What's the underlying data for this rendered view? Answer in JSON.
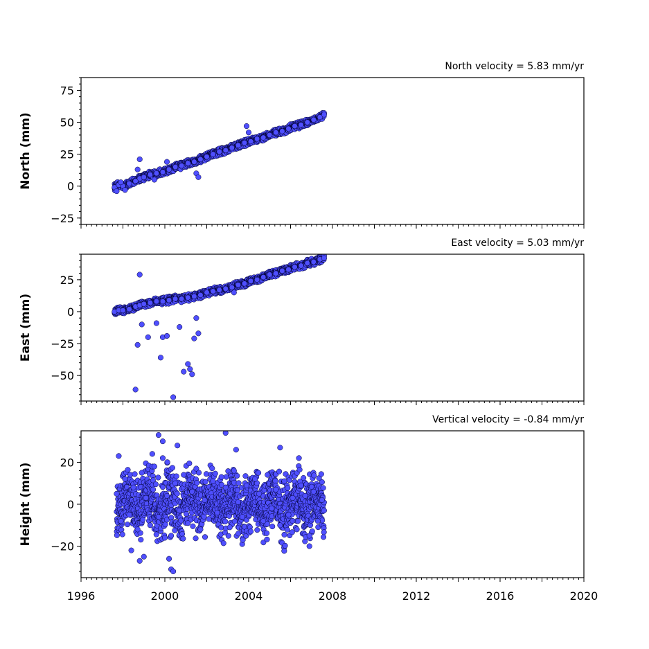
{
  "chart_data": [
    {
      "type": "scatter",
      "title": "North velocity = 5.83 mm/yr",
      "xlabel": "",
      "ylabel": "North (mm)",
      "xlim": [
        1996,
        2020
      ],
      "ylim": [
        -30,
        85
      ],
      "xticks": [
        "1996",
        "2000",
        "2004",
        "2008",
        "2012",
        "2016",
        "2020"
      ],
      "yticks": [
        -25,
        0,
        25,
        50,
        75
      ],
      "grid": false,
      "marker_color": "#4f4fff",
      "marker_edge": "#000033",
      "series": [
        {
          "x": [
            1997.6,
            1997.8,
            1998.0,
            1998.3,
            1998.6,
            1998.8,
            1999.0,
            1999.3,
            1999.6,
            1999.9,
            2000.2,
            2000.5,
            2000.8,
            2001.1,
            2001.4,
            2001.7,
            2002.0,
            2002.3,
            2002.6,
            2002.9,
            2003.2,
            2003.5,
            2003.8,
            2004.1,
            2004.4,
            2004.7,
            2005.0,
            2005.3,
            2005.6,
            2005.9,
            2006.2,
            2006.5,
            2006.8,
            2007.1,
            2007.4,
            2007.6
          ],
          "y": [
            -1,
            1,
            0,
            2,
            4,
            6,
            7,
            9,
            10,
            11,
            13,
            15,
            16,
            18,
            19,
            21,
            23,
            25,
            27,
            28,
            30,
            32,
            34,
            35,
            37,
            38,
            40,
            42,
            43,
            45,
            47,
            48,
            50,
            52,
            54,
            56
          ]
        },
        {
          "x": [
            1997.7,
            1997.9,
            1998.1,
            1998.7,
            1998.8,
            1999.5,
            2000.1,
            2001.5,
            2001.6,
            2003.9,
            2004.0
          ],
          "y": [
            -4,
            3,
            -3,
            13,
            21,
            5,
            19,
            10,
            7,
            47,
            42
          ]
        }
      ]
    },
    {
      "type": "scatter",
      "title": "East velocity = 5.03 mm/yr",
      "xlabel": "",
      "ylabel": "East (mm)",
      "xlim": [
        1996,
        2020
      ],
      "ylim": [
        -70,
        45
      ],
      "xticks": [
        "1996",
        "2000",
        "2004",
        "2008",
        "2012",
        "2016",
        "2020"
      ],
      "yticks": [
        -50,
        -25,
        0,
        25
      ],
      "grid": false,
      "marker_color": "#4f4fff",
      "marker_edge": "#000033",
      "series": [
        {
          "x": [
            1997.6,
            1997.8,
            1998.0,
            1998.3,
            1998.6,
            1998.8,
            1999.0,
            1999.3,
            1999.6,
            1999.9,
            2000.2,
            2000.5,
            2000.8,
            2001.1,
            2001.4,
            2001.7,
            2002.0,
            2002.3,
            2002.6,
            2002.9,
            2003.2,
            2003.5,
            2003.8,
            2004.1,
            2004.4,
            2004.7,
            2005.0,
            2005.3,
            2005.6,
            2005.9,
            2006.2,
            2006.5,
            2006.8,
            2007.1,
            2007.4,
            2007.6
          ],
          "y": [
            0,
            1,
            1,
            2,
            4,
            5,
            6,
            7,
            8,
            8,
            9,
            10,
            10,
            11,
            12,
            13,
            15,
            16,
            17,
            18,
            19,
            21,
            22,
            24,
            25,
            27,
            29,
            30,
            32,
            33,
            35,
            36,
            38,
            39,
            41,
            42
          ]
        },
        {
          "x": [
            1998.6,
            1998.7,
            1998.8,
            1998.9,
            1999.2,
            1999.6,
            1999.8,
            1999.9,
            2000.1,
            2000.4,
            2000.7,
            2000.9,
            2001.1,
            2001.2,
            2001.3,
            2001.4,
            2001.5,
            2001.6,
            2003.3
          ],
          "y": [
            -61,
            -26,
            29,
            -10,
            -20,
            -9,
            -36,
            -20,
            -19,
            -67,
            -12,
            -47,
            -41,
            -45,
            -49,
            -21,
            -5,
            -17,
            15
          ]
        }
      ]
    },
    {
      "type": "scatter",
      "title": "Vertical velocity = -0.84 mm/yr",
      "xlabel": "",
      "ylabel": "Height (mm)",
      "xlim": [
        1996,
        2020
      ],
      "ylim": [
        -35,
        35
      ],
      "xticks": [
        "1996",
        "2000",
        "2004",
        "2008",
        "2012",
        "2016",
        "2020"
      ],
      "yticks": [
        -20,
        0,
        20
      ],
      "grid": false,
      "marker_color": "#4f4fff",
      "marker_edge": "#000033",
      "series": [
        {
          "x": [
            1997.7,
            1997.9,
            1998.1,
            1998.3,
            1998.5,
            1998.7,
            1998.9,
            1999.1,
            1999.3,
            1999.5,
            1999.7,
            1999.9,
            2000.1,
            2000.3,
            2000.5,
            2000.7,
            2000.9,
            2001.1,
            2001.3,
            2001.5,
            2001.7,
            2001.9,
            2002.1,
            2002.3,
            2002.5,
            2002.7,
            2002.9,
            2003.1,
            2003.3,
            2003.5,
            2003.7,
            2003.9,
            2004.1,
            2004.3,
            2004.5,
            2004.7,
            2004.9,
            2005.1,
            2005.3,
            2005.5,
            2005.7,
            2005.9,
            2006.1,
            2006.3,
            2006.5,
            2006.7,
            2006.9,
            2007.1,
            2007.3,
            2007.5,
            2007.6
          ],
          "y": [
            5,
            -8,
            12,
            -5,
            8,
            -12,
            15,
            3,
            -10,
            18,
            -6,
            22,
            4,
            -15,
            10,
            -3,
            14,
            -9,
            6,
            17,
            -12,
            2,
            -7,
            11,
            -4,
            13,
            8,
            -11,
            16,
            1,
            -6,
            9,
            -13,
            12,
            5,
            -8,
            14,
            -2,
            7,
            -10,
            11,
            -5,
            3,
            -12,
            9,
            4,
            -15,
            6,
            -8,
            2,
            -3
          ]
        },
        {
          "x": [
            1997.8,
            1998.4,
            1998.8,
            1999.0,
            1999.4,
            1999.7,
            1999.9,
            2000.0,
            2000.2,
            2000.3,
            2000.4,
            2000.6,
            2002.9,
            2003.4,
            2005.5,
            2006.4,
            2006.9
          ],
          "y": [
            23,
            -22,
            -27,
            -25,
            24,
            33,
            30,
            -16,
            -26,
            -31,
            -32,
            28,
            34,
            26,
            27,
            22,
            -20
          ]
        }
      ]
    }
  ]
}
